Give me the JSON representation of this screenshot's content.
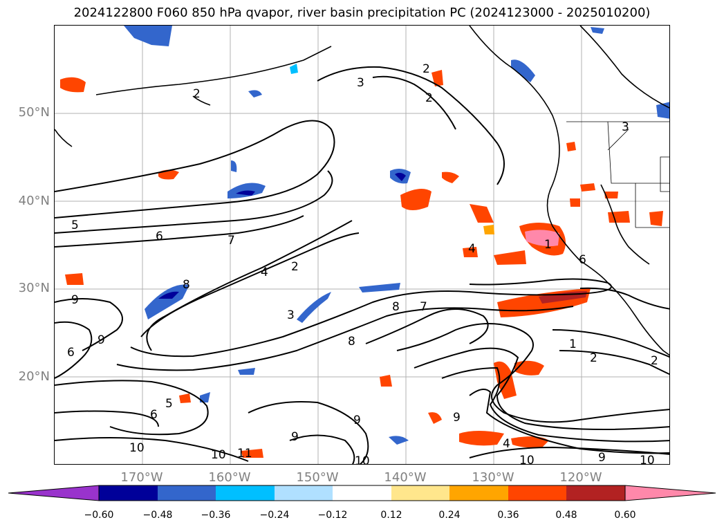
{
  "title": "2024122800 F060 850 hPa qvapor, river basin precipitation PC (2024123000 - 2025010200)",
  "map": {
    "lat_labels": [
      "50°N",
      "40°N",
      "30°N",
      "20°N"
    ],
    "lon_labels": [
      "170°W",
      "160°W",
      "150°W",
      "140°W",
      "130°W",
      "120°W"
    ],
    "contour_labels": [
      "2",
      "3",
      "2",
      "3",
      "2",
      "5",
      "6",
      "7",
      "4",
      "2",
      "8",
      "3",
      "9",
      "1",
      "9",
      "6",
      "6",
      "8",
      "7",
      "8",
      "9",
      "4",
      "1",
      "2",
      "2",
      "9",
      "10",
      "10",
      "11",
      "10",
      "9",
      "6",
      "5",
      "4",
      "10",
      "9",
      "10"
    ]
  },
  "colorbar": {
    "colors": [
      "#9933cc",
      "#000099",
      "#3366cc",
      "#00bfff",
      "#b0e0ff",
      "#ffffff",
      "#ffe68c",
      "#ffa500",
      "#ff4500",
      "#b22222",
      "#ff88aa"
    ],
    "tick_labels": [
      "−0.60",
      "−0.48",
      "−0.36",
      "−0.24",
      "−0.12",
      "0.12",
      "0.24",
      "0.36",
      "0.48",
      "0.60"
    ]
  }
}
